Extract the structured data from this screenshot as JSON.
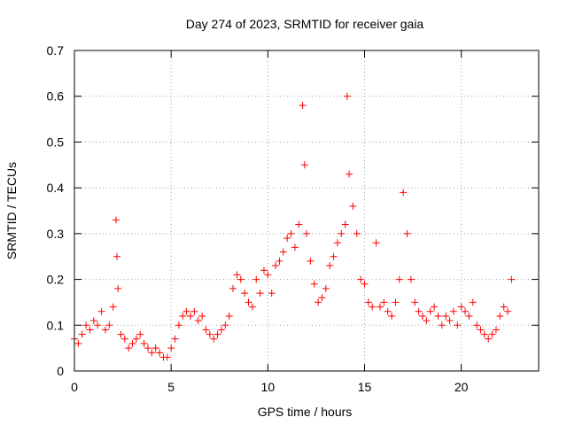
{
  "chart_data": {
    "type": "scatter",
    "title": "Day 274 of 2023, SRMTID for receiver gaia",
    "xlabel": "GPS time / hours",
    "ylabel": "SRMTID / TECUs",
    "xlim": [
      0,
      24
    ],
    "ylim": [
      0,
      0.7
    ],
    "xticks": [
      0,
      5,
      10,
      15,
      20
    ],
    "yticks": [
      0,
      0.1,
      0.2,
      0.3,
      0.4,
      0.5,
      0.6,
      0.7
    ],
    "grid": true,
    "marker": "plus",
    "color": "#ff0000",
    "series": [
      {
        "name": "SRMTID",
        "x": [
          0.0,
          0.2,
          0.4,
          0.6,
          0.8,
          1.0,
          1.2,
          1.4,
          1.6,
          1.8,
          2.0,
          2.15,
          2.2,
          2.25,
          2.4,
          2.6,
          2.8,
          3.0,
          3.2,
          3.4,
          3.6,
          3.8,
          4.0,
          4.2,
          4.4,
          4.6,
          4.8,
          5.0,
          5.2,
          5.4,
          5.6,
          5.8,
          6.0,
          6.2,
          6.4,
          6.6,
          6.8,
          7.0,
          7.2,
          7.4,
          7.6,
          7.8,
          8.0,
          8.2,
          8.4,
          8.6,
          8.8,
          9.0,
          9.2,
          9.4,
          9.6,
          9.8,
          10.0,
          10.2,
          10.4,
          10.6,
          10.8,
          11.0,
          11.2,
          11.4,
          11.6,
          11.8,
          11.9,
          12.0,
          12.2,
          12.4,
          12.6,
          12.8,
          13.0,
          13.2,
          13.4,
          13.6,
          13.8,
          14.0,
          14.1,
          14.2,
          14.4,
          14.6,
          14.8,
          15.0,
          15.2,
          15.4,
          15.6,
          15.8,
          16.0,
          16.2,
          16.4,
          16.6,
          16.8,
          17.0,
          17.2,
          17.4,
          17.6,
          17.8,
          18.0,
          18.2,
          18.4,
          18.6,
          18.8,
          19.0,
          19.2,
          19.4,
          19.6,
          19.8,
          20.0,
          20.2,
          20.4,
          20.6,
          20.8,
          21.0,
          21.2,
          21.4,
          21.6,
          21.8,
          22.0,
          22.2,
          22.4,
          22.6
        ],
        "y": [
          0.07,
          0.06,
          0.08,
          0.1,
          0.09,
          0.11,
          0.1,
          0.13,
          0.09,
          0.1,
          0.14,
          0.33,
          0.25,
          0.18,
          0.08,
          0.07,
          0.05,
          0.06,
          0.07,
          0.08,
          0.06,
          0.05,
          0.04,
          0.05,
          0.04,
          0.03,
          0.03,
          0.05,
          0.07,
          0.1,
          0.12,
          0.13,
          0.12,
          0.13,
          0.11,
          0.12,
          0.09,
          0.08,
          0.07,
          0.08,
          0.09,
          0.1,
          0.12,
          0.18,
          0.21,
          0.2,
          0.17,
          0.15,
          0.14,
          0.2,
          0.17,
          0.22,
          0.21,
          0.17,
          0.23,
          0.24,
          0.26,
          0.29,
          0.3,
          0.27,
          0.32,
          0.58,
          0.45,
          0.3,
          0.24,
          0.19,
          0.15,
          0.16,
          0.18,
          0.23,
          0.25,
          0.28,
          0.3,
          0.32,
          0.6,
          0.43,
          0.36,
          0.3,
          0.2,
          0.19,
          0.15,
          0.14,
          0.28,
          0.14,
          0.15,
          0.13,
          0.12,
          0.15,
          0.2,
          0.39,
          0.3,
          0.2,
          0.15,
          0.13,
          0.12,
          0.11,
          0.13,
          0.14,
          0.12,
          0.1,
          0.12,
          0.11,
          0.13,
          0.1,
          0.14,
          0.13,
          0.12,
          0.15,
          0.1,
          0.09,
          0.08,
          0.07,
          0.08,
          0.09,
          0.12,
          0.14,
          0.13,
          0.2
        ]
      }
    ]
  }
}
